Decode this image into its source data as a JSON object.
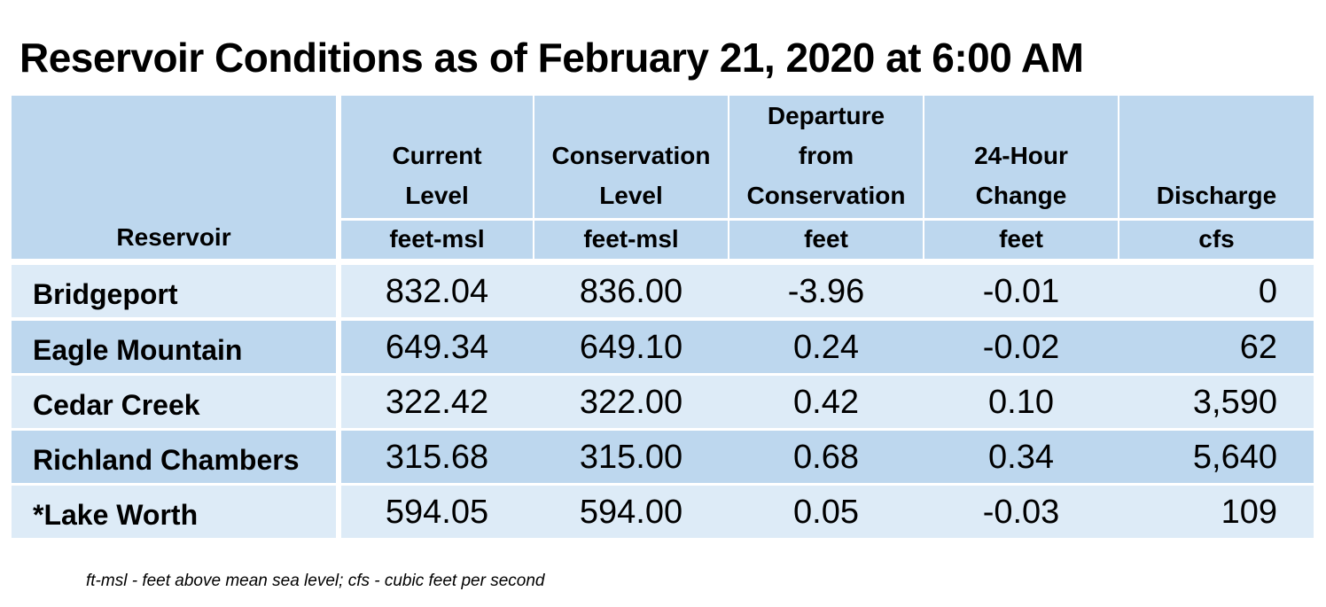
{
  "title": "Reservoir Conditions as of February 21, 2020 at 6:00 AM",
  "columns": [
    {
      "lines": [
        "",
        "",
        "",
        "Reservoir"
      ],
      "unit": ""
    },
    {
      "lines": [
        "",
        "Current",
        "Level"
      ],
      "unit": "feet-msl"
    },
    {
      "lines": [
        "",
        "Conservation",
        "Level"
      ],
      "unit": "feet-msl"
    },
    {
      "lines": [
        "Departure",
        "from",
        "Conservation"
      ],
      "unit": "feet"
    },
    {
      "lines": [
        "",
        "24-Hour",
        "Change"
      ],
      "unit": "feet"
    },
    {
      "lines": [
        "",
        "",
        "Discharge"
      ],
      "unit": "cfs"
    }
  ],
  "rows": [
    {
      "name": "Bridgeport",
      "current": "832.04",
      "conservation": "836.00",
      "departure": "-3.96",
      "change": "-0.01",
      "discharge": "0"
    },
    {
      "name": "Eagle Mountain",
      "current": "649.34",
      "conservation": "649.10",
      "departure": "0.24",
      "change": "-0.02",
      "discharge": "62"
    },
    {
      "name": "Cedar Creek",
      "current": "322.42",
      "conservation": "322.00",
      "departure": "0.42",
      "change": "0.10",
      "discharge": "3,590"
    },
    {
      "name": "Richland Chambers",
      "current": "315.68",
      "conservation": "315.00",
      "departure": "0.68",
      "change": "0.34",
      "discharge": "5,640"
    },
    {
      "name": "*Lake Worth",
      "current": "594.05",
      "conservation": "594.00",
      "departure": "0.05",
      "change": "-0.03",
      "discharge": "109"
    }
  ],
  "footnote": "ft-msl - feet above mean sea level; cfs - cubic feet per second"
}
